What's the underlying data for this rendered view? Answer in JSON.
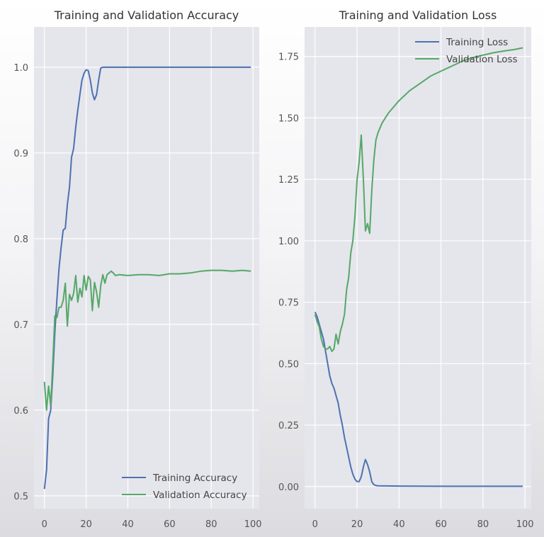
{
  "chart_data": [
    {
      "type": "line",
      "title": "Training and Validation Accuracy",
      "xlabel": "",
      "ylabel": "",
      "xlim": [
        -5,
        103
      ],
      "ylim": [
        0.485,
        1.047
      ],
      "xticks": [
        0,
        20,
        40,
        60,
        80,
        100
      ],
      "yticks": [
        0.5,
        0.6,
        0.7,
        0.8,
        0.9,
        1.0
      ],
      "xtick_labels": [
        "0",
        "20",
        "40",
        "60",
        "80",
        "100"
      ],
      "ytick_labels": [
        "0.5",
        "0.6",
        "0.7",
        "0.8",
        "0.9",
        "1.0"
      ],
      "grid": true,
      "legend_position": "lower-right",
      "series": [
        {
          "name": "Training Accuracy",
          "color": "#4c72b0",
          "points": [
            [
              0,
              0.508
            ],
            [
              1,
              0.53
            ],
            [
              2,
              0.59
            ],
            [
              3,
              0.6
            ],
            [
              4,
              0.64
            ],
            [
              5,
              0.69
            ],
            [
              6,
              0.73
            ],
            [
              7,
              0.765
            ],
            [
              8,
              0.79
            ],
            [
              9,
              0.81
            ],
            [
              10,
              0.812
            ],
            [
              11,
              0.84
            ],
            [
              12,
              0.86
            ],
            [
              13,
              0.895
            ],
            [
              14,
              0.905
            ],
            [
              15,
              0.93
            ],
            [
              16,
              0.95
            ],
            [
              17,
              0.968
            ],
            [
              18,
              0.985
            ],
            [
              19,
              0.993
            ],
            [
              20,
              0.997
            ],
            [
              21,
              0.996
            ],
            [
              22,
              0.985
            ],
            [
              23,
              0.97
            ],
            [
              24,
              0.962
            ],
            [
              25,
              0.968
            ],
            [
              26,
              0.985
            ],
            [
              27,
              0.999
            ],
            [
              28,
              1.0
            ],
            [
              30,
              1.0
            ],
            [
              40,
              1.0
            ],
            [
              50,
              1.0
            ],
            [
              60,
              1.0
            ],
            [
              70,
              1.0
            ],
            [
              80,
              1.0
            ],
            [
              90,
              1.0
            ],
            [
              99,
              1.0
            ]
          ]
        },
        {
          "name": "Validation Accuracy",
          "color": "#55a868",
          "points": [
            [
              0,
              0.633
            ],
            [
              1,
              0.6
            ],
            [
              2,
              0.628
            ],
            [
              3,
              0.605
            ],
            [
              4,
              0.655
            ],
            [
              5,
              0.71
            ],
            [
              6,
              0.708
            ],
            [
              7,
              0.72
            ],
            [
              8,
              0.72
            ],
            [
              9,
              0.728
            ],
            [
              10,
              0.748
            ],
            [
              11,
              0.698
            ],
            [
              12,
              0.735
            ],
            [
              13,
              0.728
            ],
            [
              14,
              0.736
            ],
            [
              15,
              0.757
            ],
            [
              16,
              0.726
            ],
            [
              17,
              0.742
            ],
            [
              18,
              0.732
            ],
            [
              19,
              0.757
            ],
            [
              20,
              0.74
            ],
            [
              21,
              0.756
            ],
            [
              22,
              0.752
            ],
            [
              23,
              0.716
            ],
            [
              24,
              0.749
            ],
            [
              25,
              0.738
            ],
            [
              26,
              0.72
            ],
            [
              27,
              0.745
            ],
            [
              28,
              0.758
            ],
            [
              29,
              0.748
            ],
            [
              30,
              0.758
            ],
            [
              31,
              0.76
            ],
            [
              32,
              0.762
            ],
            [
              33,
              0.76
            ],
            [
              34,
              0.757
            ],
            [
              36,
              0.758
            ],
            [
              40,
              0.757
            ],
            [
              45,
              0.758
            ],
            [
              50,
              0.758
            ],
            [
              55,
              0.757
            ],
            [
              60,
              0.759
            ],
            [
              65,
              0.759
            ],
            [
              70,
              0.76
            ],
            [
              75,
              0.762
            ],
            [
              80,
              0.763
            ],
            [
              85,
              0.763
            ],
            [
              90,
              0.762
            ],
            [
              95,
              0.763
            ],
            [
              99,
              0.762
            ]
          ]
        }
      ]
    },
    {
      "type": "line",
      "title": "Training and Validation Loss",
      "xlabel": "",
      "ylabel": "",
      "xlim": [
        -5,
        103
      ],
      "ylim": [
        -0.09,
        1.87
      ],
      "xticks": [
        0,
        20,
        40,
        60,
        80,
        100
      ],
      "yticks": [
        0.0,
        0.25,
        0.5,
        0.75,
        1.0,
        1.25,
        1.5,
        1.75
      ],
      "xtick_labels": [
        "0",
        "20",
        "40",
        "60",
        "80",
        "100"
      ],
      "ytick_labels": [
        "0.00",
        "0.25",
        "0.50",
        "0.75",
        "1.00",
        "1.25",
        "1.50",
        "1.75"
      ],
      "grid": true,
      "legend_position": "upper-right",
      "series": [
        {
          "name": "Training Loss",
          "color": "#4c72b0",
          "points": [
            [
              0,
              0.71
            ],
            [
              1,
              0.69
            ],
            [
              2,
              0.66
            ],
            [
              3,
              0.63
            ],
            [
              4,
              0.6
            ],
            [
              5,
              0.55
            ],
            [
              6,
              0.5
            ],
            [
              7,
              0.45
            ],
            [
              8,
              0.42
            ],
            [
              9,
              0.4
            ],
            [
              10,
              0.37
            ],
            [
              11,
              0.34
            ],
            [
              12,
              0.29
            ],
            [
              13,
              0.25
            ],
            [
              14,
              0.2
            ],
            [
              15,
              0.16
            ],
            [
              16,
              0.12
            ],
            [
              17,
              0.08
            ],
            [
              18,
              0.05
            ],
            [
              19,
              0.03
            ],
            [
              20,
              0.02
            ],
            [
              21,
              0.02
            ],
            [
              22,
              0.04
            ],
            [
              23,
              0.08
            ],
            [
              24,
              0.11
            ],
            [
              25,
              0.09
            ],
            [
              26,
              0.06
            ],
            [
              27,
              0.02
            ],
            [
              28,
              0.008
            ],
            [
              29,
              0.004
            ],
            [
              30,
              0.003
            ],
            [
              40,
              0.002
            ],
            [
              60,
              0.001
            ],
            [
              80,
              0.001
            ],
            [
              99,
              0.001
            ]
          ]
        },
        {
          "name": "Validation Loss",
          "color": "#55a868",
          "points": [
            [
              0,
              0.7
            ],
            [
              1,
              0.67
            ],
            [
              2,
              0.65
            ],
            [
              3,
              0.6
            ],
            [
              4,
              0.57
            ],
            [
              5,
              0.56
            ],
            [
              6,
              0.56
            ],
            [
              7,
              0.57
            ],
            [
              8,
              0.55
            ],
            [
              9,
              0.56
            ],
            [
              10,
              0.62
            ],
            [
              11,
              0.58
            ],
            [
              12,
              0.63
            ],
            [
              13,
              0.66
            ],
            [
              14,
              0.7
            ],
            [
              15,
              0.8
            ],
            [
              16,
              0.85
            ],
            [
              17,
              0.95
            ],
            [
              18,
              1.0
            ],
            [
              19,
              1.1
            ],
            [
              20,
              1.25
            ],
            [
              21,
              1.32
            ],
            [
              22,
              1.43
            ],
            [
              23,
              1.25
            ],
            [
              24,
              1.04
            ],
            [
              25,
              1.07
            ],
            [
              26,
              1.03
            ],
            [
              27,
              1.2
            ],
            [
              28,
              1.33
            ],
            [
              29,
              1.41
            ],
            [
              30,
              1.44
            ],
            [
              32,
              1.48
            ],
            [
              35,
              1.52
            ],
            [
              40,
              1.57
            ],
            [
              45,
              1.61
            ],
            [
              50,
              1.64
            ],
            [
              55,
              1.67
            ],
            [
              60,
              1.69
            ],
            [
              65,
              1.71
            ],
            [
              70,
              1.73
            ],
            [
              75,
              1.745
            ],
            [
              80,
              1.755
            ],
            [
              85,
              1.765
            ],
            [
              90,
              1.772
            ],
            [
              95,
              1.778
            ],
            [
              99,
              1.785
            ]
          ]
        }
      ]
    }
  ]
}
